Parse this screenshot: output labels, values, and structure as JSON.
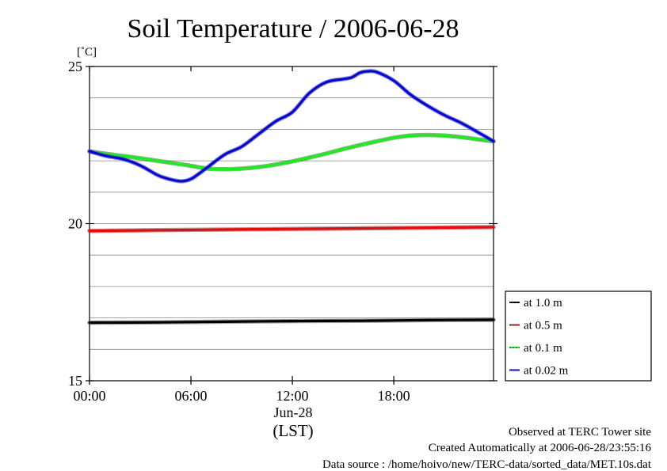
{
  "chart_data": {
    "type": "line",
    "title": "Soil Temperature / 2006-06-28",
    "ylabel": "[˚C]",
    "xlabel": "(LST)",
    "date_label": "Jun-28",
    "x_unit": "hours",
    "xlim": [
      0,
      23.9
    ],
    "ylim": [
      15,
      25
    ],
    "x_ticks": [
      {
        "value": 0,
        "label": "00:00"
      },
      {
        "value": 6,
        "label": "06:00"
      },
      {
        "value": 12,
        "label": "12:00"
      },
      {
        "value": 18,
        "label": "18:00"
      }
    ],
    "y_ticks": [
      {
        "value": 15,
        "label": "15"
      },
      {
        "value": 20,
        "label": "20"
      },
      {
        "value": 25,
        "label": "25"
      }
    ],
    "y_gridlines": [
      16,
      17,
      18,
      19,
      20,
      21,
      22,
      23,
      24
    ],
    "legend_position": "right",
    "series": [
      {
        "name": "at 1.0 m",
        "color": "#000000",
        "x": [
          0,
          4,
          8,
          12,
          16,
          20,
          23.9
        ],
        "y": [
          16.85,
          16.86,
          16.88,
          16.9,
          16.91,
          16.93,
          16.94
        ]
      },
      {
        "name": "at 0.5 m",
        "color": "#ff0000",
        "x": [
          0,
          4,
          8,
          12,
          16,
          20,
          23.9
        ],
        "y": [
          19.77,
          19.79,
          19.81,
          19.83,
          19.85,
          19.87,
          19.89
        ]
      },
      {
        "name": "at 0.1 m",
        "color": "#00ff00",
        "x": [
          0,
          1,
          2,
          3,
          4,
          5,
          6,
          7,
          8,
          9,
          10,
          11,
          12,
          13,
          14,
          15,
          16,
          17,
          18,
          19,
          20,
          21,
          22,
          23,
          23.9
        ],
        "y": [
          22.3,
          22.22,
          22.15,
          22.08,
          22.0,
          21.92,
          21.84,
          21.75,
          21.73,
          21.75,
          21.8,
          21.88,
          21.98,
          22.1,
          22.23,
          22.37,
          22.5,
          22.62,
          22.73,
          22.8,
          22.82,
          22.8,
          22.75,
          22.68,
          22.62
        ]
      },
      {
        "name": "at 0.02 m",
        "color": "#0000ff",
        "x": [
          0,
          1,
          2,
          3,
          4,
          4.5,
          5,
          5.5,
          6,
          6.5,
          7,
          8,
          9,
          10,
          11,
          12,
          13,
          14,
          15,
          15.5,
          16,
          16.5,
          17,
          18,
          19,
          20,
          21,
          22,
          23,
          23.9
        ],
        "y": [
          22.3,
          22.15,
          22.05,
          21.85,
          21.55,
          21.45,
          21.38,
          21.35,
          21.42,
          21.6,
          21.8,
          22.2,
          22.45,
          22.85,
          23.25,
          23.55,
          24.15,
          24.5,
          24.6,
          24.65,
          24.8,
          24.85,
          24.82,
          24.55,
          24.1,
          23.75,
          23.45,
          23.2,
          22.9,
          22.62
        ]
      }
    ]
  },
  "footer": {
    "observed": "Observed at TERC Tower site",
    "created": "Created Automatically at 2006-06-28/23:55:16",
    "source": "Data source : /home/hoivo/new/TERC-data/sorted_data/MET.10s.dat"
  }
}
